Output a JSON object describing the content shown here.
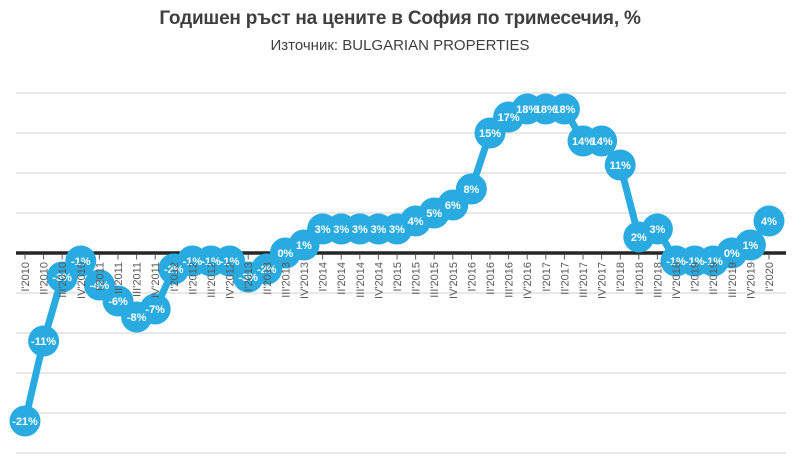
{
  "header": {
    "title": "Годишен ръст на цените в София по тримесечия, %",
    "subtitle": "Източник: BULGARIAN PROPERTIES"
  },
  "chart_data": {
    "type": "line",
    "title": "Годишен ръст на цените в София по тримесечия, %",
    "subtitle": "Източник: BULGARIAN PROPERTIES",
    "categories": [
      "I'2010",
      "II'2010",
      "III'2010",
      "IV'2010",
      "I'2011",
      "II'2011",
      "III'2011",
      "IV'2011",
      "I'2012",
      "II'2012",
      "III'2012",
      "IV'2012",
      "I'2013",
      "II'2013",
      "III'2013",
      "IV'2013",
      "I'2014",
      "II'2014",
      "III'2014",
      "IV'2014",
      "I'2015",
      "II'2015",
      "III'2015",
      "IV'2015",
      "I'2016",
      "II'2016",
      "III'2016",
      "IV'2016",
      "I'2017",
      "II'2017",
      "III'2017",
      "IV'2017",
      "I'2018",
      "II'2018",
      "III'2018",
      "IV'2018",
      "I'2019",
      "II'2019",
      "III'2019",
      "IV'2019",
      "I'2020"
    ],
    "values": [
      -21,
      -11,
      -3,
      -1,
      -4,
      -6,
      -8,
      -7,
      -2,
      -1,
      -1,
      -1,
      -3,
      -2,
      0,
      1,
      3,
      3,
      3,
      3,
      3,
      4,
      5,
      6,
      8,
      15,
      17,
      18,
      18,
      18,
      14,
      14,
      11,
      2,
      3,
      -1,
      -1,
      -1,
      0,
      1,
      4
    ],
    "point_labels": [
      "-21%",
      "-11%",
      "-3%",
      "-1%",
      "-4%",
      "-6%",
      "-8%",
      "-7%",
      "-2%",
      "-1%",
      "-1%",
      "-1%",
      "-3%",
      "-2%",
      "0%",
      "1%",
      "3%",
      "3%",
      "3%",
      "3%",
      "3%",
      "4%",
      "5%",
      "6%",
      "8%",
      "15%",
      "17%",
      "18%",
      "18%",
      "18%",
      "14%",
      "14%",
      "11%",
      "2%",
      "3%",
      "-1%",
      "-1%",
      "-1%",
      "0%",
      "1%",
      "4%"
    ],
    "xlabel": "",
    "ylabel": "",
    "ylim": [
      -25,
      20
    ],
    "gridline_step": 5,
    "grid": true,
    "legend": false,
    "y_tick_labels_shown": false,
    "colors": {
      "series": "#29ABE2",
      "point_label": "#FFFFFF",
      "axis_label": "#595959",
      "zero_line": "#262626",
      "gridline": "#D9D9D9",
      "title": "#3F3F3F"
    }
  }
}
